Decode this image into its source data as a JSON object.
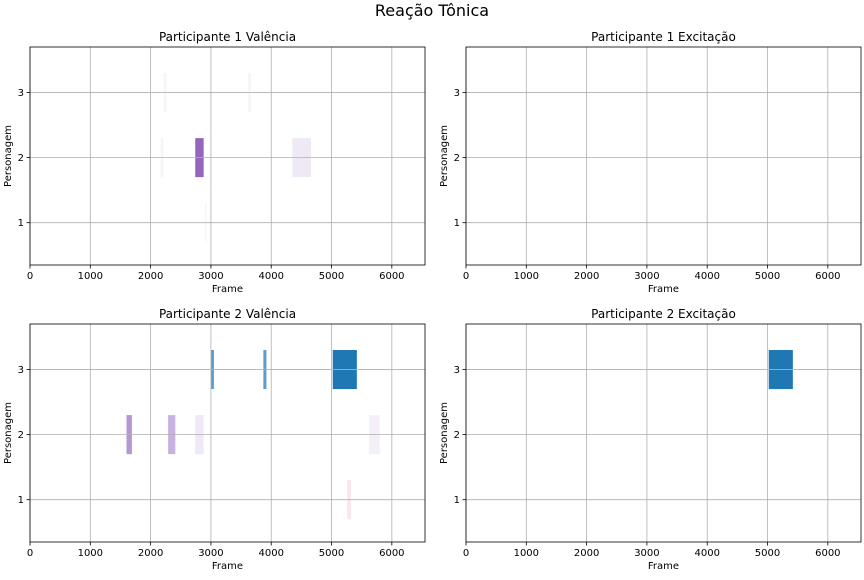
{
  "figure": {
    "title": "Reação Tônica"
  },
  "chart_data": [
    {
      "type": "bar",
      "title": "Participante 1 Valência",
      "xlabel": "Frame",
      "ylabel": "Personagem",
      "xlim": [
        0,
        6550
      ],
      "ylim": [
        0.35,
        3.7
      ],
      "xticks": [
        0,
        1000,
        2000,
        3000,
        4000,
        5000,
        6000
      ],
      "yticks": [
        1,
        2,
        3
      ],
      "grid": true,
      "bars": [
        {
          "y": 3,
          "x_start": 2220,
          "x_end": 2260,
          "color": "#f7f3fa"
        },
        {
          "y": 3,
          "x_start": 3620,
          "x_end": 3660,
          "color": "#f7f3fa"
        },
        {
          "y": 2,
          "x_start": 2170,
          "x_end": 2210,
          "color": "#f7f3fa"
        },
        {
          "y": 2,
          "x_start": 2740,
          "x_end": 2880,
          "color": "#9467bd"
        },
        {
          "y": 2,
          "x_start": 4350,
          "x_end": 4660,
          "color": "#efe9f5"
        },
        {
          "y": 1,
          "x_start": 2900,
          "x_end": 2930,
          "color": "#f9f6fb"
        }
      ]
    },
    {
      "type": "bar",
      "title": "Participante 1 Excitação",
      "xlabel": "Frame",
      "ylabel": "Personagem",
      "xlim": [
        0,
        6550
      ],
      "ylim": [
        0.35,
        3.7
      ],
      "xticks": [
        0,
        1000,
        2000,
        3000,
        4000,
        5000,
        6000
      ],
      "yticks": [
        1,
        2,
        3
      ],
      "grid": true,
      "bars": []
    },
    {
      "type": "bar",
      "title": "Participante 2 Valência",
      "xlabel": "Frame",
      "ylabel": "Personagem",
      "xlim": [
        0,
        6550
      ],
      "ylim": [
        0.35,
        3.7
      ],
      "xticks": [
        0,
        1000,
        2000,
        3000,
        4000,
        5000,
        6000
      ],
      "yticks": [
        1,
        2,
        3
      ],
      "grid": true,
      "bars": [
        {
          "y": 3,
          "x_start": 3000,
          "x_end": 3050,
          "color": "#5b9bd0"
        },
        {
          "y": 3,
          "x_start": 3870,
          "x_end": 3920,
          "color": "#5b9bd0"
        },
        {
          "y": 3,
          "x_start": 5020,
          "x_end": 5420,
          "color": "#1f77b4"
        },
        {
          "y": 2,
          "x_start": 1600,
          "x_end": 1690,
          "color": "#b597d4"
        },
        {
          "y": 2,
          "x_start": 2290,
          "x_end": 2410,
          "color": "#c8b3e0"
        },
        {
          "y": 2,
          "x_start": 2740,
          "x_end": 2880,
          "color": "#efe8f6"
        },
        {
          "y": 2,
          "x_start": 5620,
          "x_end": 5800,
          "color": "#f4eff9"
        },
        {
          "y": 1,
          "x_start": 5260,
          "x_end": 5320,
          "color": "#fbe5ea"
        }
      ]
    },
    {
      "type": "bar",
      "title": "Participante 2 Excitação",
      "xlabel": "Frame",
      "ylabel": "Personagem",
      "xlim": [
        0,
        6550
      ],
      "ylim": [
        0.35,
        3.7
      ],
      "xticks": [
        0,
        1000,
        2000,
        3000,
        4000,
        5000,
        6000
      ],
      "yticks": [
        1,
        2,
        3
      ],
      "grid": true,
      "bars": [
        {
          "y": 3,
          "x_start": 5020,
          "x_end": 5420,
          "color": "#1f77b4"
        }
      ]
    }
  ]
}
